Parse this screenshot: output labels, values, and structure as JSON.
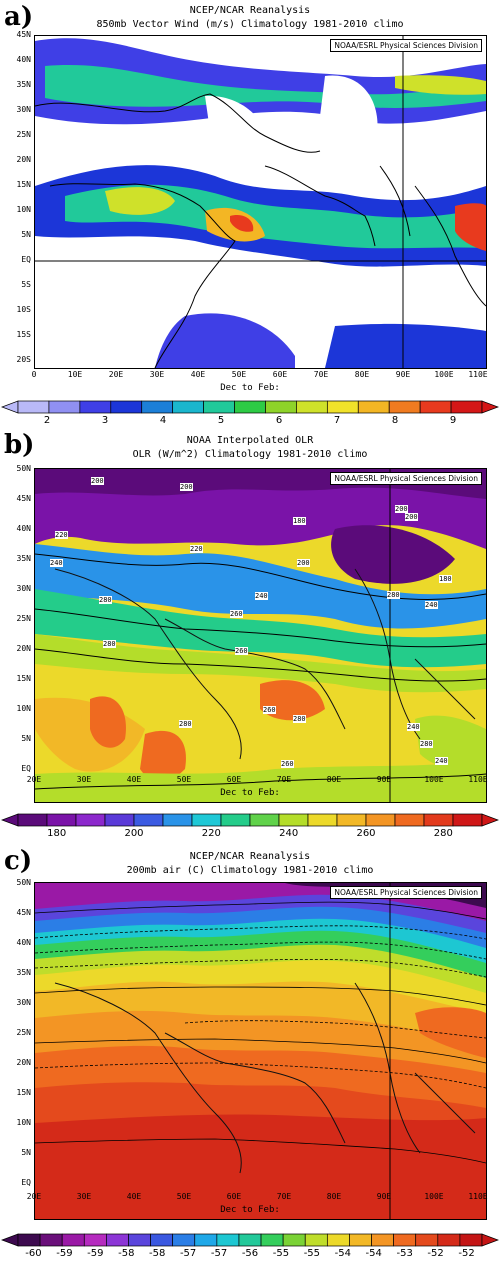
{
  "panels": [
    {
      "label": "a)",
      "title1": "NCEP/NCAR Reanalysis",
      "title2": "850mb Vector Wind (m/s) Climatology 1981-2010 climo",
      "credit": "NOAA/ESRL Physical Sciences Division",
      "season": "Dec to Feb:",
      "yticks": [
        "45N",
        "40N",
        "35N",
        "30N",
        "25N",
        "20N",
        "15N",
        "10N",
        "5N",
        "EQ",
        "5S",
        "10S",
        "15S",
        "20S"
      ],
      "xticks": [
        "0",
        "10E",
        "20E",
        "30E",
        "40E",
        "50E",
        "60E",
        "70E",
        "80E",
        "90E",
        "100E",
        "110E"
      ],
      "colorbar": {
        "labels": [
          "2",
          "3",
          "4",
          "5",
          "6",
          "7",
          "8",
          "9"
        ],
        "colors": [
          "#b9b9f7",
          "#9090f2",
          "#3f3fe6",
          "#1c36d8",
          "#1c7fd8",
          "#1ab6cd",
          "#21c99a",
          "#2dcb45",
          "#8ed329",
          "#cfe12a",
          "#f1e22a",
          "#f3b624",
          "#f07b20",
          "#e83a1e",
          "#d41717"
        ]
      }
    },
    {
      "label": "b)",
      "title1": "NOAA Interpolated OLR",
      "title2": "OLR (W/m^2) Climatology 1981-2010 climo",
      "credit": "NOAA/ESRL Physical Sciences Division",
      "season": "Dec to Feb:",
      "yticks": [
        "50N",
        "45N",
        "40N",
        "35N",
        "30N",
        "25N",
        "20N",
        "15N",
        "10N",
        "5N",
        "EQ"
      ],
      "xticks": [
        "20E",
        "30E",
        "40E",
        "50E",
        "60E",
        "70E",
        "80E",
        "90E",
        "100E",
        "110E"
      ],
      "contour_labels": [
        "200",
        "200",
        "200",
        "180",
        "200",
        "200",
        "220",
        "220",
        "240",
        "240",
        "280",
        "260",
        "260",
        "280",
        "280",
        "240",
        "240",
        "260",
        "280",
        "280",
        "260",
        "180",
        "280",
        "240"
      ],
      "colorbar": {
        "labels": [
          "180",
          "200",
          "220",
          "240",
          "260",
          "280"
        ],
        "colors": [
          "#5b0b7a",
          "#7a13a8",
          "#8c28cc",
          "#5a3ad8",
          "#3b5be2",
          "#2a93e8",
          "#1fc8d6",
          "#24cc8a",
          "#60d24a",
          "#b4dd2a",
          "#ecd92a",
          "#f2b827",
          "#f39524",
          "#ef6a20",
          "#e23a1c",
          "#cf1717"
        ]
      }
    },
    {
      "label": "c)",
      "title1": "NCEP/NCAR Reanalysis",
      "title2": "200mb air (C) Climatology 1981-2010 climo",
      "credit": "NOAA/ESRL Physical Sciences Division",
      "season": "Dec to Feb:",
      "yticks": [
        "50N",
        "45N",
        "40N",
        "35N",
        "30N",
        "25N",
        "20N",
        "15N",
        "10N",
        "5N",
        "EQ"
      ],
      "xticks": [
        "20E",
        "30E",
        "40E",
        "50E",
        "60E",
        "70E",
        "80E",
        "90E",
        "100E",
        "110E"
      ],
      "colorbar": {
        "labels": [
          "-60",
          "-59",
          "-59",
          "-58",
          "-58",
          "-57",
          "-57",
          "-56",
          "-55",
          "-55",
          "-54",
          "-54",
          "-53",
          "-52",
          "-52"
        ],
        "colors": [
          "#3d0a4f",
          "#6a0f7a",
          "#9a19a6",
          "#b52bbf",
          "#8c35d6",
          "#5a45dc",
          "#3a58e0",
          "#2b7ee6",
          "#1fa8e8",
          "#1dc7d2",
          "#23c99a",
          "#34ce5c",
          "#7ad235",
          "#bfdd2b",
          "#ecd92a",
          "#f2b827",
          "#f39524",
          "#ef6a20",
          "#e44a1d",
          "#d42a19",
          "#c41515"
        ]
      }
    }
  ]
}
